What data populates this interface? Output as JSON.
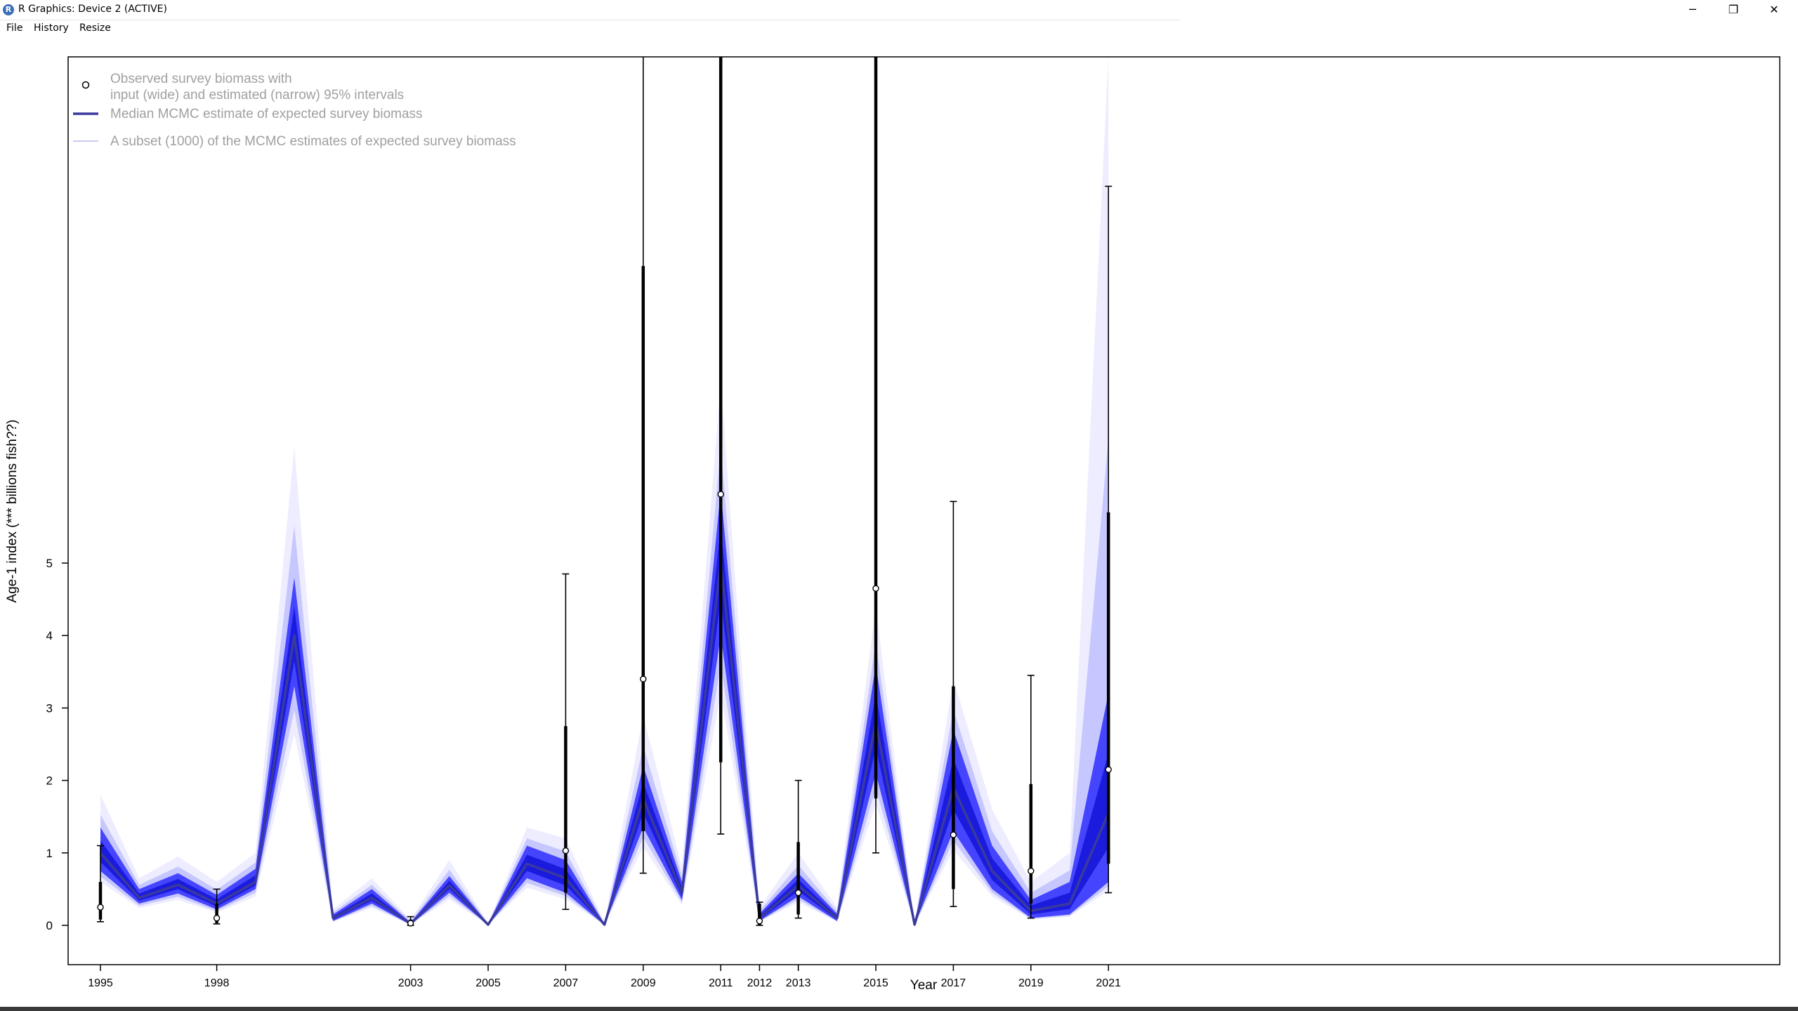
{
  "window": {
    "title": "R Graphics: Device 2 (ACTIVE)",
    "minimize_glyph": "─",
    "maximize_glyph": "❐",
    "close_glyph": "✕"
  },
  "menu": {
    "items": [
      "File",
      "History",
      "Resize"
    ]
  },
  "colors": {
    "median_line": "#3a3a9e",
    "mcmc_band": "#1a1aff",
    "observed": "#000000"
  },
  "chart_data": {
    "type": "line",
    "xlabel": "Year",
    "ylabel": "Age-1 index (*** billions fish??)",
    "xlim": [
      1994.8,
      2021.3
    ],
    "ylim": [
      0,
      12
    ],
    "x_tick_labels": [
      "1995",
      "1998",
      "2003",
      "2005",
      "2007",
      "2009",
      "2011",
      "2012",
      "2013",
      "2015",
      "2017",
      "2019",
      "2021"
    ],
    "y_tick_labels": [
      "0",
      "1",
      "2",
      "3",
      "4",
      "5"
    ],
    "legend": {
      "position": "top-left",
      "entries": [
        "Observed survey biomass with\ninput (wide) and estimated (narrow) 95% intervals",
        "Median MCMC estimate of expected survey biomass",
        "A subset (1000) of the MCMC estimates of expected survey biomass"
      ]
    },
    "median": {
      "x": [
        1995,
        1996,
        1997,
        1998,
        1999,
        2000,
        2001,
        2002,
        2003,
        2004,
        2005,
        2006,
        2007,
        2008,
        2009,
        2010,
        2011,
        2012,
        2013,
        2014,
        2015,
        2016,
        2017,
        2018,
        2019,
        2020,
        2021
      ],
      "y": [
        1.0,
        0.38,
        0.56,
        0.3,
        0.6,
        4.0,
        0.1,
        0.38,
        0.02,
        0.55,
        0.01,
        0.85,
        0.65,
        0.01,
        1.75,
        0.45,
        5.0,
        0.1,
        0.55,
        0.1,
        2.8,
        0.01,
        1.9,
        0.75,
        0.2,
        0.3,
        1.55
      ]
    },
    "band": {
      "lower": [
        0.75,
        0.3,
        0.44,
        0.22,
        0.5,
        3.3,
        0.06,
        0.3,
        0.01,
        0.45,
        0.005,
        0.65,
        0.45,
        0.005,
        1.35,
        0.35,
        4.0,
        0.06,
        0.4,
        0.06,
        2.1,
        0.005,
        1.3,
        0.5,
        0.1,
        0.15,
        0.6
      ],
      "upper": [
        1.35,
        0.5,
        0.72,
        0.42,
        0.78,
        4.8,
        0.15,
        0.5,
        0.04,
        0.68,
        0.02,
        1.1,
        0.9,
        0.02,
        2.2,
        0.6,
        6.0,
        0.16,
        0.72,
        0.16,
        3.6,
        0.02,
        2.7,
        1.1,
        0.35,
        0.6,
        3.2
      ],
      "outer_upper": [
        1.8,
        0.65,
        0.95,
        0.6,
        1.0,
        6.6,
        0.22,
        0.65,
        0.08,
        0.9,
        0.03,
        1.35,
        1.2,
        0.04,
        2.9,
        0.8,
        7.5,
        0.25,
        1.0,
        0.25,
        4.4,
        0.04,
        3.4,
        1.6,
        0.6,
        1.0,
        12
      ]
    },
    "observed": {
      "x": [
        1995,
        1998,
        2003,
        2007,
        2009,
        2011,
        2012,
        2013,
        2015,
        2017,
        2019,
        2021
      ],
      "y": [
        0.25,
        0.1,
        0.03,
        1.03,
        3.4,
        5.95,
        0.06,
        0.45,
        4.65,
        1.25,
        0.75,
        2.15
      ],
      "wide_low": [
        0.08,
        0.03,
        0.0,
        0.45,
        1.3,
        2.25,
        0.0,
        0.15,
        1.75,
        0.5,
        0.3,
        0.85
      ],
      "wide_high": [
        0.6,
        0.3,
        0.08,
        2.75,
        9.1,
        12,
        0.3,
        1.15,
        12,
        3.3,
        1.95,
        5.7
      ],
      "narrow_low": [
        0.05,
        0.02,
        0.0,
        0.22,
        0.72,
        1.26,
        0.0,
        0.1,
        1.0,
        0.26,
        0.1,
        0.45
      ],
      "narrow_high": [
        1.1,
        0.5,
        0.12,
        4.85,
        12,
        12,
        0.32,
        2.0,
        12,
        5.85,
        3.45,
        10.2
      ]
    }
  }
}
